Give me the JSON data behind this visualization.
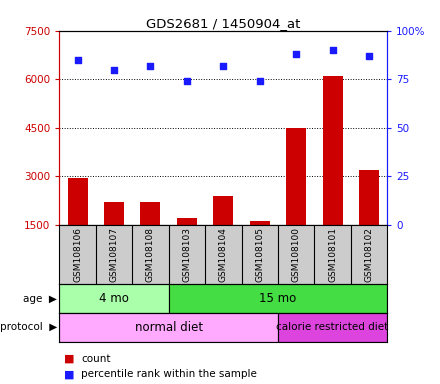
{
  "title": "GDS2681 / 1450904_at",
  "samples": [
    "GSM108106",
    "GSM108107",
    "GSM108108",
    "GSM108103",
    "GSM108104",
    "GSM108105",
    "GSM108100",
    "GSM108101",
    "GSM108102"
  ],
  "counts": [
    2950,
    2200,
    2200,
    1700,
    2400,
    1600,
    4500,
    6100,
    3200
  ],
  "percentile": [
    85,
    80,
    82,
    74,
    82,
    74,
    88,
    90,
    87
  ],
  "ylim_left": [
    1500,
    7500
  ],
  "ylim_right": [
    0,
    100
  ],
  "yticks_left": [
    1500,
    3000,
    4500,
    6000,
    7500
  ],
  "yticks_right": [
    0,
    25,
    50,
    75,
    100
  ],
  "bar_color": "#cc0000",
  "scatter_color": "#1a1aff",
  "age_groups": [
    {
      "label": "4 mo",
      "start": 0,
      "end": 3,
      "color": "#aaffaa"
    },
    {
      "label": "15 mo",
      "start": 3,
      "end": 9,
      "color": "#44dd44"
    }
  ],
  "protocol_groups": [
    {
      "label": "normal diet",
      "start": 0,
      "end": 6,
      "color": "#ffaaff"
    },
    {
      "label": "calorie restricted diet",
      "start": 6,
      "end": 9,
      "color": "#dd44dd"
    }
  ],
  "background_color": "#ffffff",
  "plot_bg": "#ffffff",
  "sample_bg": "#cccccc",
  "grid_linestyle": "dotted",
  "grid_color": "#000000"
}
